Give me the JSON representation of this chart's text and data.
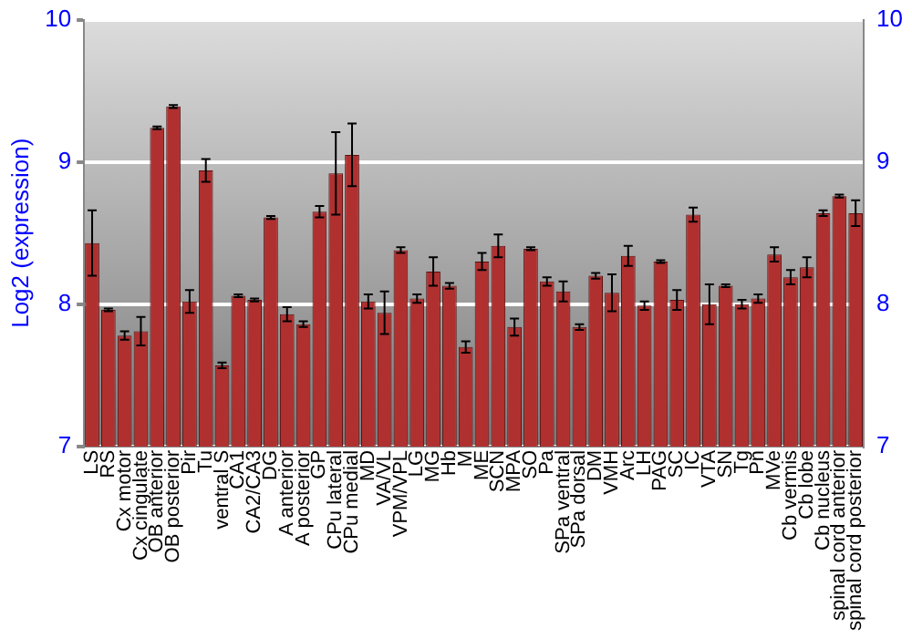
{
  "chart_data": {
    "type": "bar",
    "ylabel": "Log2 (expression)",
    "categories": [
      "LS",
      "RS",
      "Cx motor",
      "Cx cingulate",
      "OB anterior",
      "OB posterior",
      "Pir",
      "Tu",
      "ventral S",
      "CA1",
      "CA2/CA3",
      "DG",
      "A anterior",
      "A posterior",
      "GP",
      "CPu lateral",
      "CPu medial",
      "MD",
      "VA/VL",
      "VPM/VPL",
      "LG",
      "MG",
      "Hb",
      "M",
      "ME",
      "SCN",
      "MPA",
      "SO",
      "Pa",
      "SPa ventral",
      "SPa dorsal",
      "DM",
      "VMH",
      "Arc",
      "LH",
      "PAG",
      "SC",
      "IC",
      "VTA",
      "SN",
      "Tg",
      "Pn",
      "MVe",
      "Cb vermis",
      "Cb lobe",
      "Cb nucleus",
      "spinal cord anterior",
      "spinal cord posterior"
    ],
    "series": [
      {
        "color": "#b03030",
        "values": [
          8.43,
          7.96,
          7.78,
          7.81,
          9.24,
          9.39,
          8.02,
          8.94,
          7.57,
          8.06,
          8.03,
          8.61,
          7.93,
          7.86,
          8.65,
          8.92,
          9.05,
          8.02,
          7.94,
          8.38,
          8.04,
          8.23,
          8.13,
          7.7,
          8.3,
          8.41,
          7.84,
          8.39,
          8.16,
          8.09,
          7.84,
          8.2,
          8.08,
          8.34,
          7.99,
          8.3,
          8.03,
          8.63,
          8.0,
          8.13,
          8.0,
          8.04,
          8.35,
          8.19,
          8.26,
          8.64,
          8.76,
          8.64
        ],
        "errors": [
          0.23,
          0.01,
          0.03,
          0.1,
          0.01,
          0.01,
          0.08,
          0.08,
          0.02,
          0.01,
          0.01,
          0.01,
          0.05,
          0.02,
          0.04,
          0.29,
          0.22,
          0.05,
          0.15,
          0.02,
          0.03,
          0.1,
          0.02,
          0.04,
          0.06,
          0.08,
          0.06,
          0.01,
          0.03,
          0.07,
          0.02,
          0.02,
          0.13,
          0.07,
          0.03,
          0.01,
          0.07,
          0.05,
          0.14,
          0.01,
          0.03,
          0.03,
          0.05,
          0.05,
          0.07,
          0.02,
          0.01,
          0.09
        ]
      }
    ],
    "ylim": [
      7,
      10
    ],
    "yticks": [
      7,
      8,
      9,
      10
    ],
    "y2lim": [
      7,
      10
    ],
    "y2ticks": [
      7,
      8,
      9,
      10
    ],
    "grid": "y",
    "legend": false
  }
}
